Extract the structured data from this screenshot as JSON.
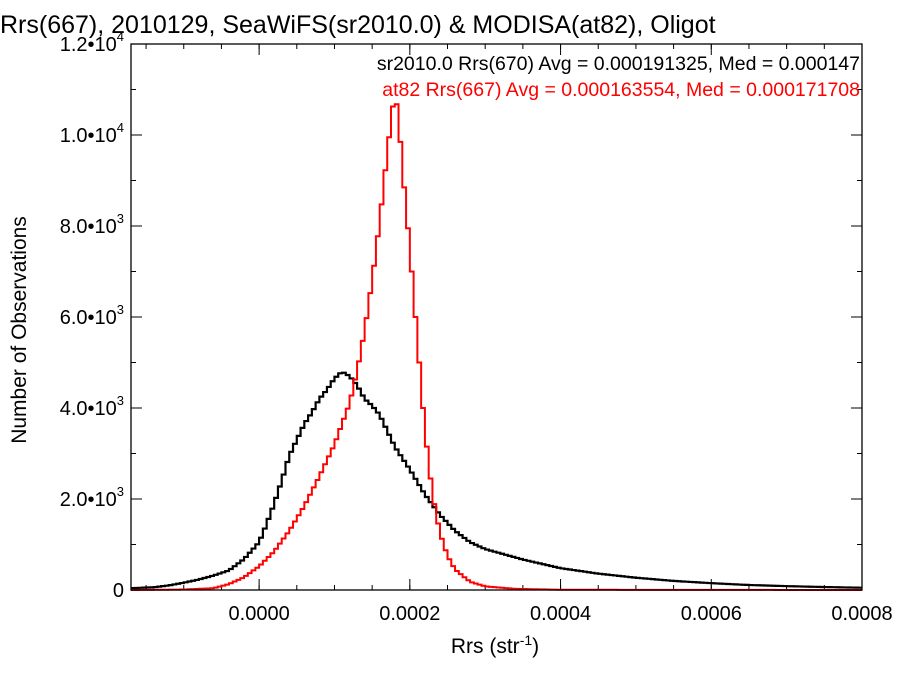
{
  "chart_data": {
    "type": "line",
    "title": "Rrs(667), 2010129, SeaWiFS(sr2010.0) & MODISA(at82), Oligot",
    "xlabel_main": "Rrs (str",
    "xlabel_sup": "-1",
    "xlabel_end": ")",
    "ylabel": "Number of Observations",
    "xlim": [
      -0.00017,
      0.0008
    ],
    "ylim": [
      0,
      12000
    ],
    "x_ticks": [
      {
        "value": 0.0,
        "label": "0.0000"
      },
      {
        "value": 0.0002,
        "label": "0.0002"
      },
      {
        "value": 0.0004,
        "label": "0.0004"
      },
      {
        "value": 0.0006,
        "label": "0.0006"
      },
      {
        "value": 0.0008,
        "label": "0.0008"
      }
    ],
    "y_ticks": [
      {
        "value": 0,
        "mantissa": "0",
        "exponent": ""
      },
      {
        "value": 2000,
        "mantissa": "2.0•10",
        "exponent": "3"
      },
      {
        "value": 4000,
        "mantissa": "4.0•10",
        "exponent": "3"
      },
      {
        "value": 6000,
        "mantissa": "6.0•10",
        "exponent": "3"
      },
      {
        "value": 8000,
        "mantissa": "8.0•10",
        "exponent": "3"
      },
      {
        "value": 10000,
        "mantissa": "1.0•10",
        "exponent": "4"
      },
      {
        "value": 12000,
        "mantissa": "1.2•10",
        "exponent": "4"
      }
    ],
    "x_minor_step": 5e-05,
    "y_minor_step": 1000,
    "series": [
      {
        "name": "sr2010.0 Rrs(670)",
        "legend": "sr2010.0 Rrs(670) Avg = 0.000191325, Med = 0.000147",
        "color": "#000000",
        "points": [
          [
            -0.00017,
            40
          ],
          [
            -0.00014,
            60
          ],
          [
            -0.00012,
            100
          ],
          [
            -0.0001,
            160
          ],
          [
            -8e-05,
            230
          ],
          [
            -6e-05,
            320
          ],
          [
            -4e-05,
            430
          ],
          [
            -2e-05,
            680
          ],
          [
            0.0,
            1050
          ],
          [
            1e-05,
            1450
          ],
          [
            2e-05,
            1900
          ],
          [
            3e-05,
            2400
          ],
          [
            4e-05,
            2950
          ],
          [
            5e-05,
            3300
          ],
          [
            6e-05,
            3650
          ],
          [
            7e-05,
            3900
          ],
          [
            8e-05,
            4200
          ],
          [
            9e-05,
            4400
          ],
          [
            0.0001,
            4650
          ],
          [
            0.00011,
            4800
          ],
          [
            0.00012,
            4700
          ],
          [
            0.00013,
            4500
          ],
          [
            0.00014,
            4200
          ],
          [
            0.00015,
            4050
          ],
          [
            0.00016,
            3850
          ],
          [
            0.00017,
            3500
          ],
          [
            0.00018,
            3150
          ],
          [
            0.0002,
            2650
          ],
          [
            0.00022,
            2100
          ],
          [
            0.00024,
            1650
          ],
          [
            0.00026,
            1300
          ],
          [
            0.00028,
            1050
          ],
          [
            0.0003,
            900
          ],
          [
            0.00035,
            670
          ],
          [
            0.0004,
            480
          ],
          [
            0.00045,
            360
          ],
          [
            0.0005,
            270
          ],
          [
            0.00055,
            200
          ],
          [
            0.0006,
            150
          ],
          [
            0.00065,
            110
          ],
          [
            0.0007,
            85
          ],
          [
            0.00075,
            65
          ],
          [
            0.0008,
            50
          ]
        ]
      },
      {
        "name": "at82 Rrs(667)",
        "legend": "at82 Rrs(667) Avg = 0.000163554, Med = 0.000171708",
        "color": "#ff0000",
        "points": [
          [
            -0.00017,
            0
          ],
          [
            -0.0001,
            10
          ],
          [
            -6e-05,
            40
          ],
          [
            -4e-05,
            130
          ],
          [
            -2e-05,
            280
          ],
          [
            0.0,
            520
          ],
          [
            2e-05,
            850
          ],
          [
            4e-05,
            1300
          ],
          [
            6e-05,
            1850
          ],
          [
            8e-05,
            2500
          ],
          [
            0.0001,
            3200
          ],
          [
            0.00012,
            4100
          ],
          [
            0.00013,
            4800
          ],
          [
            0.00014,
            5700
          ],
          [
            0.00015,
            6800
          ],
          [
            0.00016,
            8100
          ],
          [
            0.00017,
            9600
          ],
          [
            0.000175,
            10300
          ],
          [
            0.00018,
            10950
          ],
          [
            0.000185,
            10400
          ],
          [
            0.00019,
            9300
          ],
          [
            0.0002,
            7500
          ],
          [
            0.00021,
            5500
          ],
          [
            0.00022,
            3500
          ],
          [
            0.00023,
            2100
          ],
          [
            0.00024,
            1250
          ],
          [
            0.00025,
            750
          ],
          [
            0.00026,
            450
          ],
          [
            0.00028,
            180
          ],
          [
            0.0003,
            80
          ],
          [
            0.00034,
            25
          ],
          [
            0.0004,
            5
          ],
          [
            0.0008,
            0
          ]
        ]
      }
    ],
    "grid": false,
    "legend_position": "top-right"
  }
}
